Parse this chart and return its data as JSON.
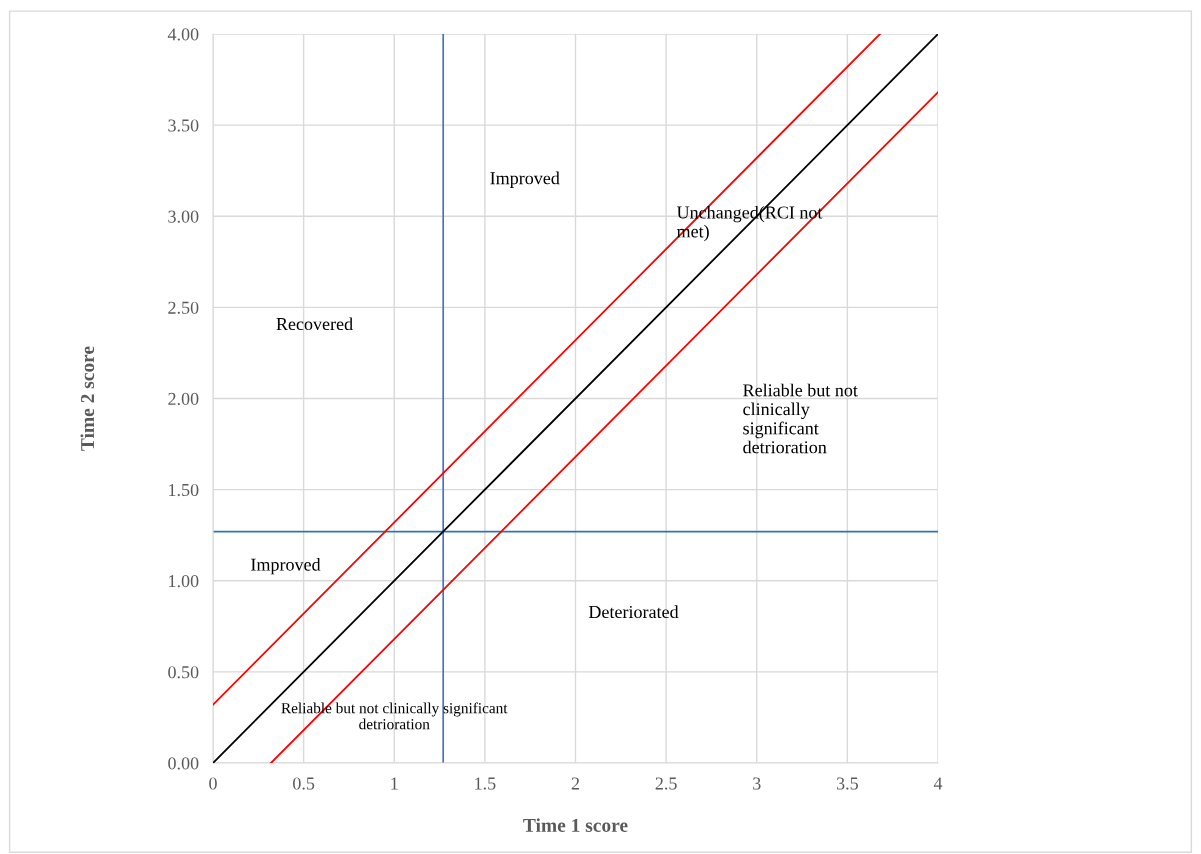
{
  "chart_data": {
    "type": "line",
    "xlabel": "Time 1 score",
    "ylabel": "Time 2 score",
    "series": [
      {
        "color": "#000000",
        "x": [
          0,
          4
        ],
        "values": [
          0,
          4
        ]
      },
      {
        "color": "#ff0000",
        "x": [
          0,
          3.68
        ],
        "values": [
          0.32,
          4
        ]
      },
      {
        "color": "#ff0000",
        "x": [
          0.32,
          4
        ],
        "values": [
          0,
          3.68
        ]
      }
    ],
    "xlim": [
      0,
      4
    ],
    "xticks": [
      0,
      0.5,
      1,
      1.5,
      2,
      2.5,
      3,
      3.5,
      4
    ],
    "ylim": [
      0,
      4
    ],
    "yticks": [
      {
        "value": 0,
        "label": "0.00"
      },
      {
        "value": 0.5,
        "label": "0.50"
      },
      {
        "value": 1,
        "label": "1.00"
      },
      {
        "value": 1.5,
        "label": "1.50"
      },
      {
        "value": 2,
        "label": "2.00"
      },
      {
        "value": 2.5,
        "label": "2.50"
      },
      {
        "value": 3,
        "label": "3.00"
      },
      {
        "value": 3.5,
        "label": "3.50"
      },
      {
        "value": 4,
        "label": "4.00"
      }
    ],
    "ref_lines": [
      {
        "axis": "x",
        "value": 1.27,
        "color": "#4472c4"
      },
      {
        "axis": "y",
        "value": 1.27,
        "color": "#2e75b6"
      }
    ],
    "grid": true,
    "marker": "none",
    "line_style": "solid",
    "annotations": [
      "Improved",
      "Unchanged(RCI not\nmet)",
      "Recovered",
      "Reliable but not\nclinically\nsignificant\ndetrioration",
      "Improved",
      "Deteriorated",
      "Reliable but not clinically significant\ndetrioration"
    ]
  }
}
